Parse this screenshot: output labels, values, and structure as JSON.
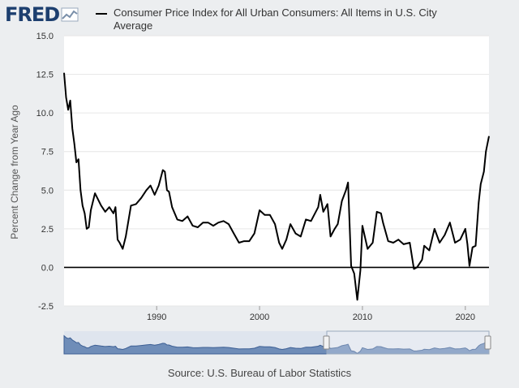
{
  "logo": {
    "text": "FRED",
    "icon": "fred-chart-icon"
  },
  "legend": {
    "label": "Consumer Price Index for All Urban Consumers: All Items in U.S. City Average"
  },
  "source": "Source: U.S. Bureau of Labor Statistics",
  "colors": {
    "background": "#eceef0",
    "plot": "#ffffff",
    "line": "#000000",
    "navigator": "#4a6fa5",
    "brand": "#1d3f6f"
  },
  "chart_data": {
    "type": "line",
    "title": "",
    "xlabel": "",
    "ylabel": "Percent Change from Year Ago",
    "xlim": [
      1981.0,
      2022.3
    ],
    "ylim": [
      -2.5,
      15.0
    ],
    "x_ticks": [
      1990,
      2000,
      2010,
      2020
    ],
    "y_ticks": [
      15.0,
      12.5,
      10.0,
      7.5,
      5.0,
      2.5,
      0.0,
      -2.5
    ],
    "y_tick_labels": [
      "15.0",
      "12.5",
      "10.0",
      "7.5",
      "5.0",
      "2.5",
      "0.0",
      "-2.5"
    ],
    "grid": true,
    "legend_position": "top",
    "series": [
      {
        "name": "Consumer Price Index for All Urban Consumers: All Items in U.S. City Average",
        "x": [
          1981.0,
          1981.2,
          1981.4,
          1981.6,
          1981.8,
          1982.0,
          1982.2,
          1982.4,
          1982.6,
          1982.8,
          1983.0,
          1983.2,
          1983.4,
          1983.6,
          1984.0,
          1984.3,
          1984.6,
          1985.0,
          1985.4,
          1985.8,
          1986.0,
          1986.2,
          1986.4,
          1986.7,
          1987.0,
          1987.5,
          1988.0,
          1988.5,
          1989.0,
          1989.4,
          1989.8,
          1990.2,
          1990.6,
          1990.8,
          1991.0,
          1991.2,
          1991.5,
          1992.0,
          1992.5,
          1993.0,
          1993.5,
          1994.0,
          1994.5,
          1995.0,
          1995.5,
          1996.0,
          1996.5,
          1997.0,
          1997.5,
          1998.0,
          1998.5,
          1999.0,
          1999.5,
          2000.0,
          2000.5,
          2001.0,
          2001.5,
          2001.9,
          2002.2,
          2002.6,
          2003.0,
          2003.5,
          2004.0,
          2004.5,
          2005.0,
          2005.7,
          2005.9,
          2006.2,
          2006.6,
          2006.9,
          2007.3,
          2007.6,
          2008.0,
          2008.4,
          2008.6,
          2008.9,
          2009.2,
          2009.5,
          2009.8,
          2010.0,
          2010.5,
          2011.0,
          2011.4,
          2011.8,
          2012.0,
          2012.5,
          2013.0,
          2013.5,
          2014.0,
          2014.6,
          2015.0,
          2015.3,
          2015.8,
          2016.0,
          2016.5,
          2017.0,
          2017.5,
          2018.0,
          2018.5,
          2019.0,
          2019.5,
          2020.0,
          2020.2,
          2020.4,
          2020.7,
          2021.0,
          2021.3,
          2021.5,
          2021.8,
          2022.0,
          2022.3
        ],
        "values": [
          12.6,
          11.0,
          10.2,
          10.8,
          9.0,
          8.0,
          6.8,
          7.0,
          5.0,
          4.0,
          3.5,
          2.5,
          2.6,
          3.7,
          4.8,
          4.4,
          4.0,
          3.6,
          3.9,
          3.5,
          3.9,
          1.8,
          1.6,
          1.2,
          2.0,
          4.0,
          4.1,
          4.5,
          5.0,
          5.3,
          4.7,
          5.3,
          6.3,
          6.2,
          5.0,
          4.9,
          3.9,
          3.1,
          3.0,
          3.3,
          2.7,
          2.6,
          2.9,
          2.9,
          2.7,
          2.9,
          3.0,
          2.8,
          2.2,
          1.6,
          1.7,
          1.7,
          2.2,
          3.7,
          3.4,
          3.4,
          2.8,
          1.6,
          1.2,
          1.8,
          2.8,
          2.2,
          2.0,
          3.1,
          3.0,
          3.9,
          4.7,
          3.6,
          4.1,
          2.0,
          2.5,
          2.8,
          4.3,
          5.0,
          5.5,
          0.1,
          -0.4,
          -2.1,
          -0.2,
          2.7,
          1.2,
          1.6,
          3.6,
          3.5,
          2.9,
          1.7,
          1.6,
          1.8,
          1.5,
          1.6,
          -0.1,
          0.0,
          0.5,
          1.4,
          1.1,
          2.5,
          1.6,
          2.1,
          2.9,
          1.6,
          1.8,
          2.5,
          1.5,
          0.1,
          1.3,
          1.4,
          4.2,
          5.4,
          6.2,
          7.5,
          8.5
        ]
      }
    ]
  }
}
